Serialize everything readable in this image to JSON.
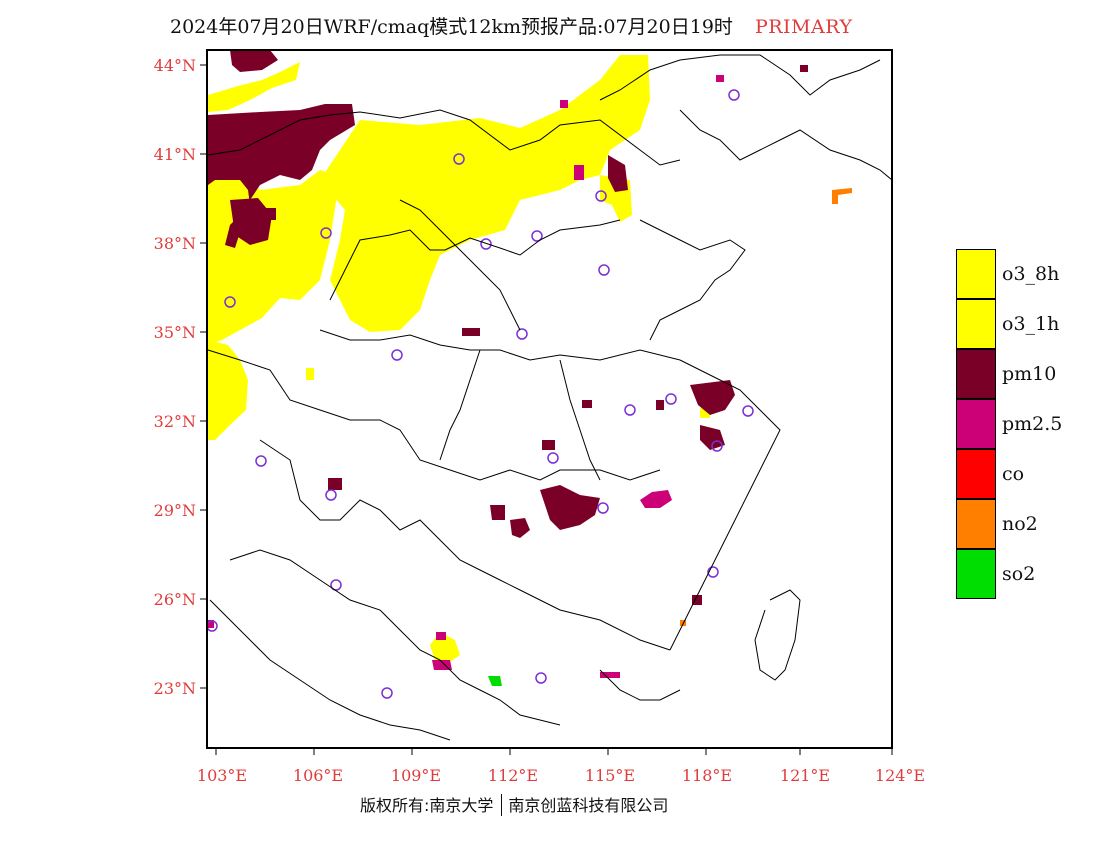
{
  "title": {
    "main": "2024年07月20日WRF/cmaq模式12km预报产品:07月20日19时",
    "tag": "PRIMARY"
  },
  "axes": {
    "lat_labels": [
      "44°N",
      "41°N",
      "38°N",
      "35°N",
      "32°N",
      "29°N",
      "26°N",
      "23°N"
    ],
    "lon_labels": [
      "103°E",
      "106°E",
      "109°E",
      "112°E",
      "115°E",
      "118°E",
      "121°E",
      "124°E"
    ]
  },
  "legend": [
    {
      "label": "o3_8h",
      "color": "#ffff00"
    },
    {
      "label": "o3_1h",
      "color": "#ffff00"
    },
    {
      "label": "pm10",
      "color": "#7a0028"
    },
    {
      "label": "pm2.5",
      "color": "#cc0077"
    },
    {
      "label": "co",
      "color": "#ff0000"
    },
    {
      "label": "no2",
      "color": "#ff8000"
    },
    {
      "label": "so2",
      "color": "#00dd00"
    }
  ],
  "footer": {
    "left": "版权所有:南京大学",
    "right": "南京创蓝科技有限公司"
  }
}
